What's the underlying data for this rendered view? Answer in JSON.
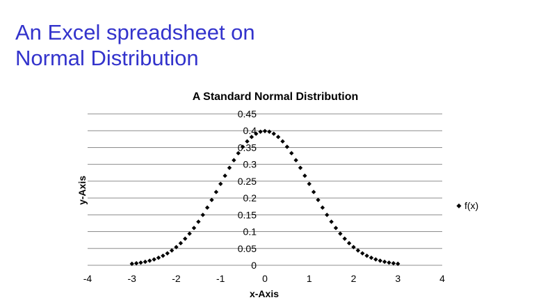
{
  "slide": {
    "title_line1": "An Excel spreadsheet on",
    "title_line2": "Normal Distribution"
  },
  "chart_data": {
    "type": "scatter",
    "title": "A Standard Normal Distribution",
    "xlabel": "x-Axis",
    "ylabel": "y-Axis",
    "xlim": [
      -4,
      4
    ],
    "ylim": [
      0,
      0.45
    ],
    "x_ticks": [
      "-4",
      "-3",
      "-2",
      "-1",
      "0",
      "1",
      "2",
      "3",
      "4"
    ],
    "y_ticks": [
      "0",
      "0.05",
      "0.1",
      "0.15",
      "0.2",
      "0.25",
      "0.3",
      "0.35",
      "0.4",
      "0.45"
    ],
    "grid": "horizontal",
    "legend_position": "right",
    "series": [
      {
        "name": "f(x)",
        "color": "#000000",
        "marker": "diamond",
        "x": [
          -3.0,
          -2.9,
          -2.8,
          -2.7,
          -2.6,
          -2.5,
          -2.4,
          -2.3,
          -2.2,
          -2.1,
          -2.0,
          -1.9,
          -1.8,
          -1.7,
          -1.6,
          -1.5,
          -1.4,
          -1.3,
          -1.2,
          -1.1,
          -1.0,
          -0.9,
          -0.8,
          -0.7,
          -0.6,
          -0.5,
          -0.4,
          -0.3,
          -0.2,
          -0.1,
          0.0,
          0.1,
          0.2,
          0.3,
          0.4,
          0.5,
          0.6,
          0.7,
          0.8,
          0.9,
          1.0,
          1.1,
          1.2,
          1.3,
          1.4,
          1.5,
          1.6,
          1.7,
          1.8,
          1.9,
          2.0,
          2.1,
          2.2,
          2.3,
          2.4,
          2.5,
          2.6,
          2.7,
          2.8,
          2.9,
          3.0
        ],
        "y": [
          0.0044,
          0.006,
          0.0079,
          0.0104,
          0.0136,
          0.0175,
          0.0224,
          0.0283,
          0.0355,
          0.044,
          0.054,
          0.0656,
          0.079,
          0.094,
          0.1109,
          0.1295,
          0.1497,
          0.1714,
          0.1942,
          0.2179,
          0.242,
          0.2661,
          0.2897,
          0.3123,
          0.3332,
          0.3521,
          0.3683,
          0.3814,
          0.391,
          0.397,
          0.3989,
          0.397,
          0.391,
          0.3814,
          0.3683,
          0.3521,
          0.3332,
          0.3123,
          0.2897,
          0.2661,
          0.242,
          0.2179,
          0.1942,
          0.1714,
          0.1497,
          0.1295,
          0.1109,
          0.094,
          0.079,
          0.0656,
          0.054,
          0.044,
          0.0355,
          0.0283,
          0.0224,
          0.0175,
          0.0136,
          0.0104,
          0.0079,
          0.006,
          0.0044
        ]
      }
    ]
  }
}
